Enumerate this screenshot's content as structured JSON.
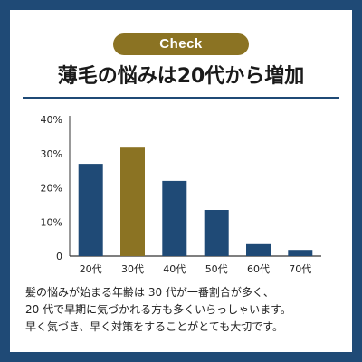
{
  "badge": {
    "label": "Check"
  },
  "title": "薄毛の悩みは20代から増加",
  "caption": [
    "髪の悩みが始まる年齢は 30 代が一番割合が多く、",
    "20 代で早期に気づかれる方も多くいらっしゃいます。",
    "早く気づき、早く対策をすることがとても大切です。"
  ],
  "colors": {
    "frame": "#1f4a76",
    "bar": "#1f4a76",
    "highlight": "#8b7323",
    "badge": "#8b7323"
  },
  "chart_data": {
    "type": "bar",
    "categories": [
      "20代",
      "30代",
      "40代",
      "50代",
      "60代",
      "70代"
    ],
    "values": [
      27,
      32,
      22,
      13.5,
      3.5,
      1.8
    ],
    "highlight_index": 1,
    "yticks": [
      "0",
      "10%",
      "20%",
      "30%",
      "40%"
    ],
    "ylim": [
      0,
      40
    ],
    "grid": false
  }
}
